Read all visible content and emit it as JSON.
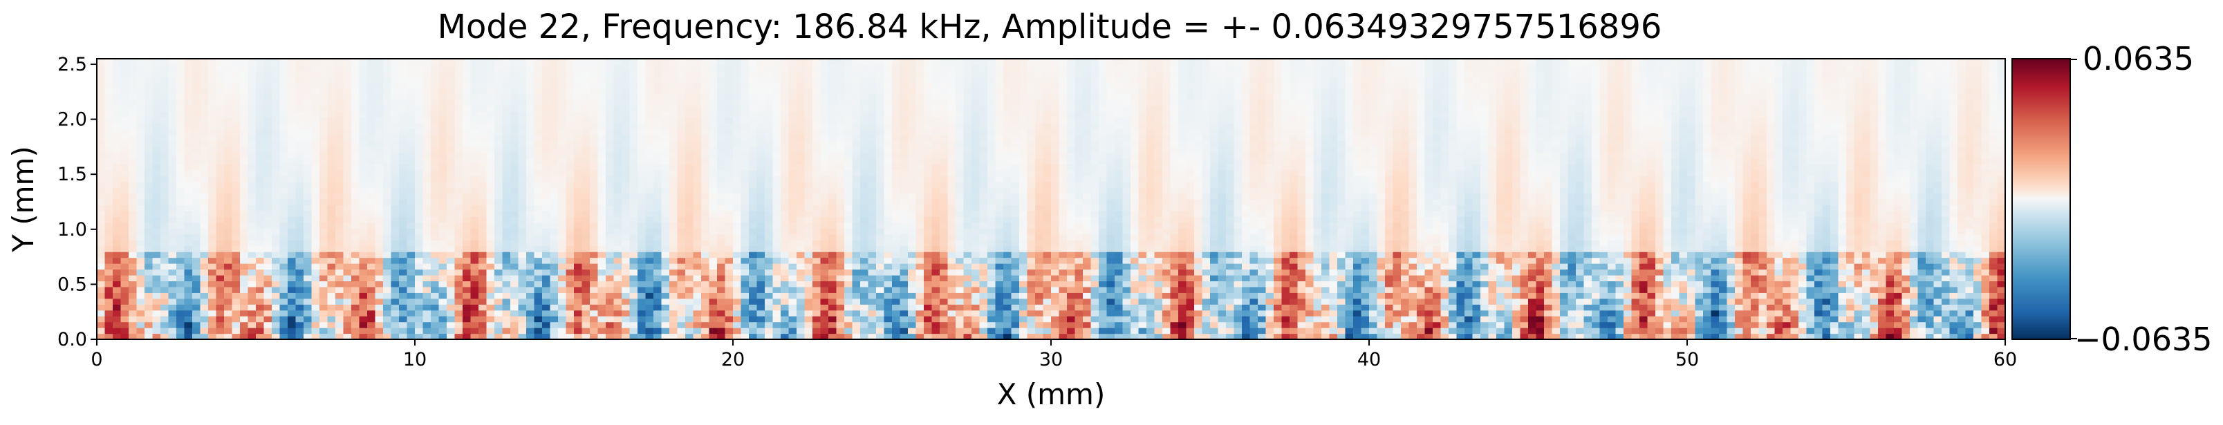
{
  "chart_data": {
    "type": "heatmap",
    "title": "Mode 22, Frequency: 186.84 kHz, Amplitude = +- 0.06349329757516896",
    "xlabel": "X (mm)",
    "ylabel": "Y (mm)",
    "xlim": [
      0,
      60
    ],
    "ylim": [
      0,
      2.55
    ],
    "xticks": [
      0,
      10,
      20,
      30,
      40,
      50,
      60
    ],
    "xtick_labels": [
      "0",
      "10",
      "20",
      "30",
      "40",
      "50",
      "60"
    ],
    "yticks": [
      0.0,
      0.5,
      1.0,
      1.5,
      2.0,
      2.5
    ],
    "ytick_labels": [
      "0.0",
      "0.5",
      "1.0",
      "1.5",
      "2.0",
      "2.5"
    ],
    "colormap": "RdBu_r",
    "vmin": -0.0635,
    "vmax": 0.0635,
    "colorbar_labels": [
      "0.0635",
      "−0.0635"
    ],
    "grid": false,
    "colors": {
      "positive": "#67001f",
      "negative": "#053061",
      "zero": "#f7f7f7"
    },
    "field_note": "Spatial mode-shape field; strongest alternating red/blue structures concentrated below Y ≈ 0.8 mm, faint alternating bands above."
  }
}
